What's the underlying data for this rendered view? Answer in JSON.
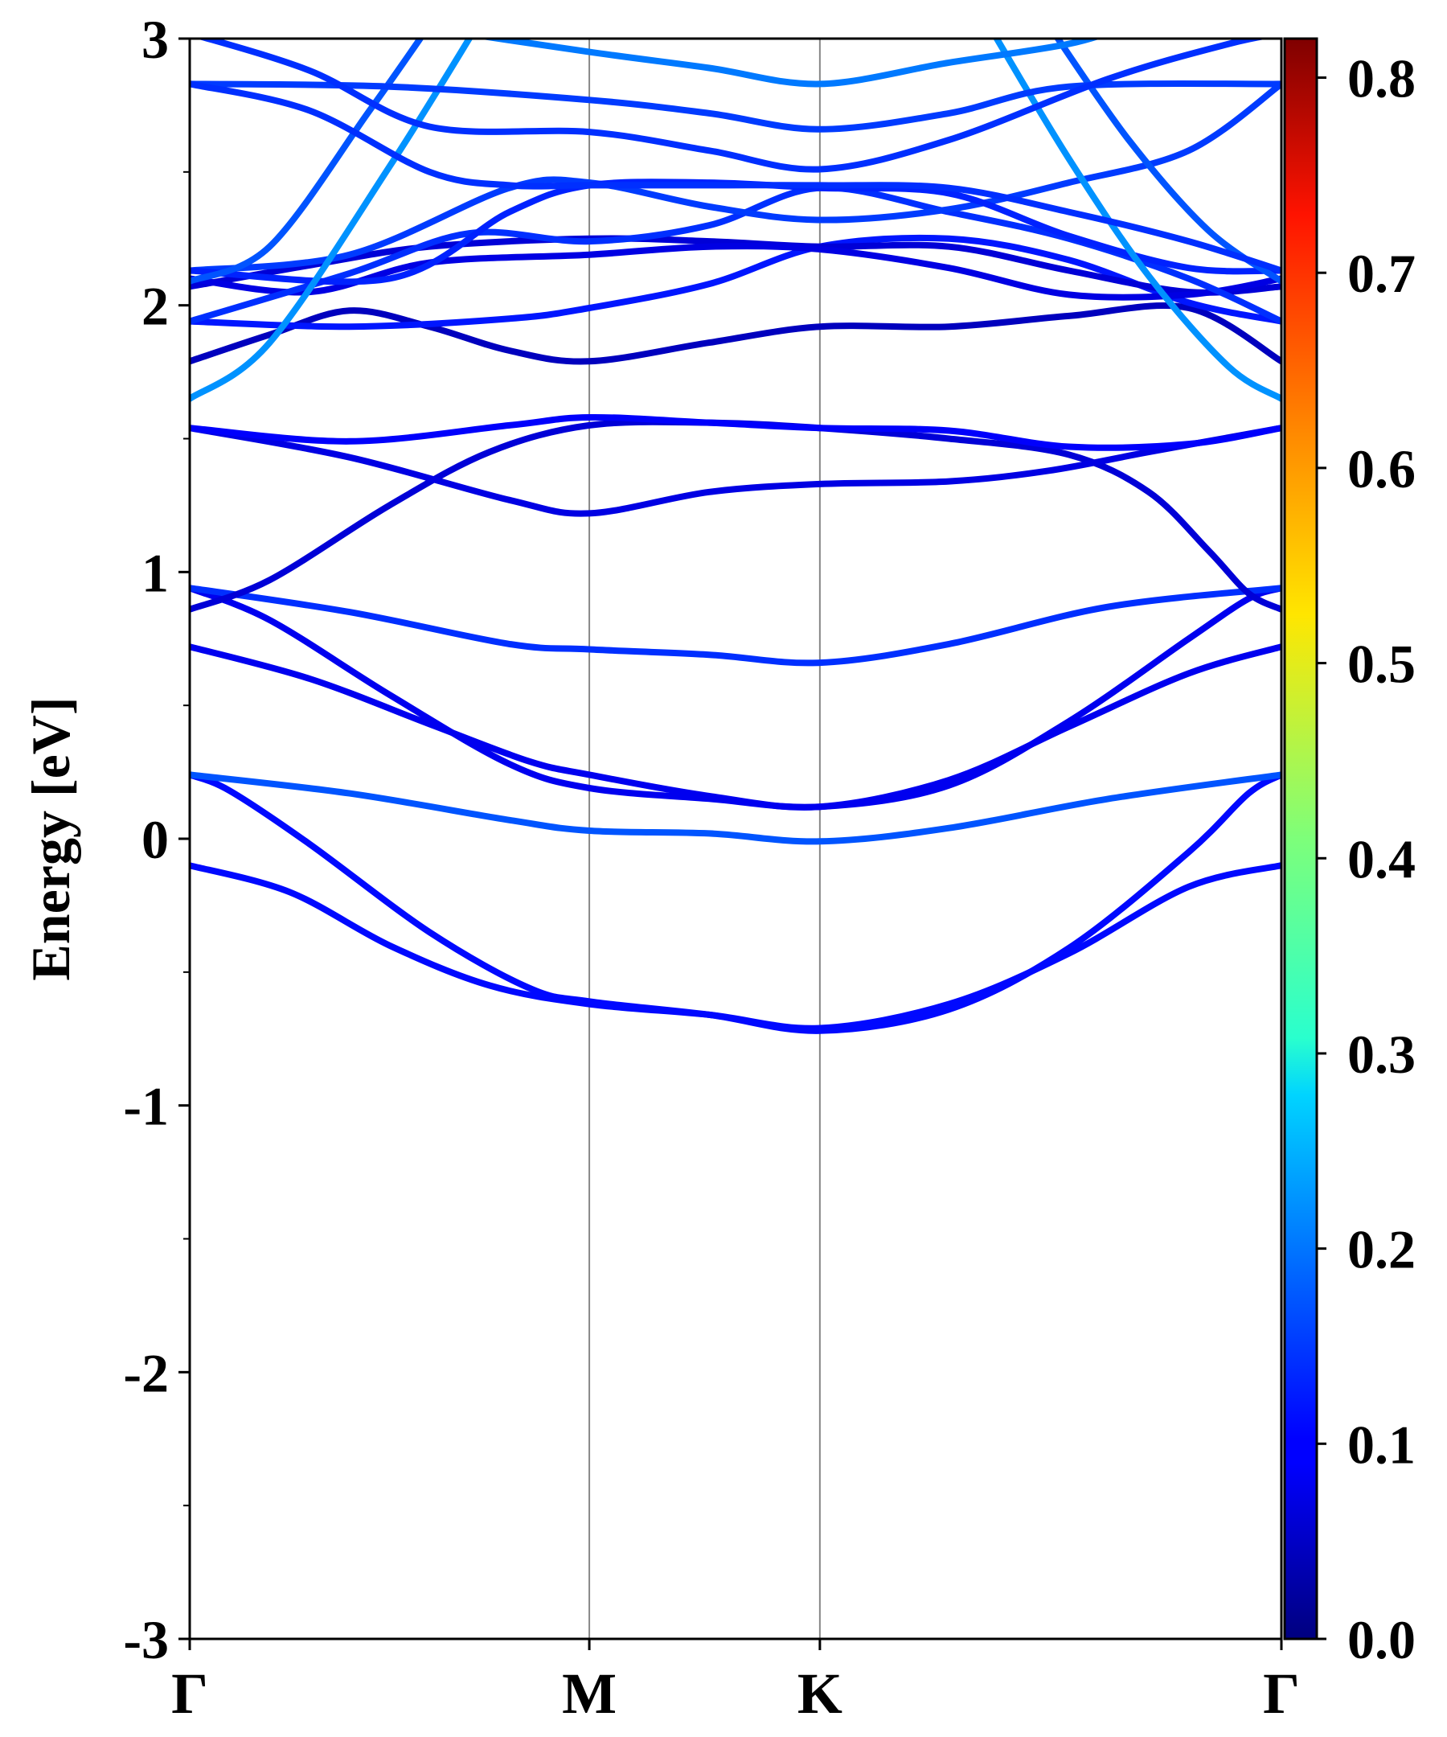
{
  "chart_data": {
    "type": "line",
    "title": "",
    "xlabel": "",
    "ylabel": "Energy [eV]",
    "ylim": [
      -3,
      3
    ],
    "xlim": [
      0,
      2.732
    ],
    "y_ticks": [
      -3,
      -2,
      -1,
      0,
      1,
      2,
      3
    ],
    "y_tick_labels": [
      "-3",
      "-2",
      "-1",
      "0",
      "1",
      "2",
      "3"
    ],
    "y_minor_ticks": [
      -2.5,
      -1.5,
      -0.5,
      0.5,
      1.5,
      2.5
    ],
    "k_points": [
      {
        "label": "Γ",
        "x": 0
      },
      {
        "label": "M",
        "x": 1.0
      },
      {
        "label": "K",
        "x": 1.577
      },
      {
        "label": "Γ",
        "x": 2.732
      }
    ],
    "colorbar": {
      "range": [
        0.0,
        0.82
      ],
      "ticks": [
        0.0,
        0.1,
        0.2,
        0.3,
        0.4,
        0.5,
        0.6,
        0.7,
        0.8
      ],
      "tick_labels": [
        "0.0",
        "0.1",
        "0.2",
        "0.3",
        "0.4",
        "0.5",
        "0.6",
        "0.7",
        "0.8"
      ],
      "colormap": "jet"
    },
    "series": [
      {
        "points": [
          [
            0,
            -0.1
          ],
          [
            0.25,
            -0.2
          ],
          [
            0.5,
            -0.4
          ],
          [
            0.75,
            -0.55
          ],
          [
            1.0,
            -0.62
          ],
          [
            1.3,
            -0.66
          ],
          [
            1.577,
            -0.71
          ],
          [
            1.9,
            -0.62
          ],
          [
            2.2,
            -0.43
          ],
          [
            2.5,
            -0.18
          ],
          [
            2.732,
            -0.1
          ]
        ],
        "weight": 0.11
      },
      {
        "points": [
          [
            0,
            0.24
          ],
          [
            0.1,
            0.18
          ],
          [
            0.3,
            -0.02
          ],
          [
            0.6,
            -0.35
          ],
          [
            0.85,
            -0.56
          ],
          [
            1.0,
            -0.61
          ],
          [
            1.3,
            -0.66
          ],
          [
            1.577,
            -0.72
          ],
          [
            1.9,
            -0.64
          ],
          [
            2.2,
            -0.41
          ],
          [
            2.5,
            -0.05
          ],
          [
            2.65,
            0.17
          ],
          [
            2.732,
            0.24
          ]
        ],
        "weight": 0.11
      },
      {
        "points": [
          [
            0,
            0.24
          ],
          [
            0.4,
            0.17
          ],
          [
            0.8,
            0.07
          ],
          [
            1.0,
            0.03
          ],
          [
            1.3,
            0.02
          ],
          [
            1.577,
            -0.01
          ],
          [
            1.9,
            0.04
          ],
          [
            2.3,
            0.15
          ],
          [
            2.732,
            0.24
          ]
        ],
        "weight": 0.17
      },
      {
        "points": [
          [
            0,
            0.72
          ],
          [
            0.3,
            0.6
          ],
          [
            0.6,
            0.43
          ],
          [
            0.85,
            0.29
          ],
          [
            1.0,
            0.24
          ],
          [
            1.3,
            0.16
          ],
          [
            1.577,
            0.12
          ],
          [
            1.9,
            0.22
          ],
          [
            2.2,
            0.42
          ],
          [
            2.5,
            0.62
          ],
          [
            2.732,
            0.72
          ]
        ],
        "weight": 0.09
      },
      {
        "points": [
          [
            0,
            0.94
          ],
          [
            0.2,
            0.82
          ],
          [
            0.5,
            0.54
          ],
          [
            0.8,
            0.28
          ],
          [
            1.0,
            0.19
          ],
          [
            1.3,
            0.15
          ],
          [
            1.577,
            0.12
          ],
          [
            1.9,
            0.2
          ],
          [
            2.2,
            0.44
          ],
          [
            2.5,
            0.75
          ],
          [
            2.65,
            0.9
          ],
          [
            2.732,
            0.94
          ]
        ],
        "weight": 0.09
      },
      {
        "points": [
          [
            0,
            0.94
          ],
          [
            0.4,
            0.85
          ],
          [
            0.8,
            0.73
          ],
          [
            1.0,
            0.71
          ],
          [
            1.3,
            0.69
          ],
          [
            1.577,
            0.66
          ],
          [
            1.9,
            0.73
          ],
          [
            2.3,
            0.87
          ],
          [
            2.732,
            0.94
          ]
        ],
        "weight": 0.14
      },
      {
        "points": [
          [
            0,
            0.86
          ],
          [
            0.2,
            0.97
          ],
          [
            0.5,
            1.25
          ],
          [
            0.75,
            1.45
          ],
          [
            1.0,
            1.55
          ],
          [
            1.3,
            1.56
          ],
          [
            1.577,
            1.54
          ],
          [
            1.9,
            1.5
          ],
          [
            2.2,
            1.44
          ],
          [
            2.4,
            1.3
          ],
          [
            2.55,
            1.08
          ],
          [
            2.65,
            0.92
          ],
          [
            2.732,
            0.86
          ]
        ],
        "weight": 0.07
      },
      {
        "points": [
          [
            0,
            1.54
          ],
          [
            0.4,
            1.43
          ],
          [
            0.8,
            1.27
          ],
          [
            1.0,
            1.22
          ],
          [
            1.3,
            1.3
          ],
          [
            1.577,
            1.33
          ],
          [
            1.9,
            1.34
          ],
          [
            2.15,
            1.38
          ],
          [
            2.4,
            1.45
          ],
          [
            2.732,
            1.54
          ]
        ],
        "weight": 0.08
      },
      {
        "points": [
          [
            0,
            1.54
          ],
          [
            0.4,
            1.49
          ],
          [
            0.8,
            1.55
          ],
          [
            1.0,
            1.58
          ],
          [
            1.3,
            1.56
          ],
          [
            1.577,
            1.54
          ],
          [
            1.9,
            1.53
          ],
          [
            2.2,
            1.47
          ],
          [
            2.5,
            1.48
          ],
          [
            2.732,
            1.54
          ]
        ],
        "weight": 0.1
      },
      {
        "points": [
          [
            0,
            1.79
          ],
          [
            0.2,
            1.89
          ],
          [
            0.4,
            1.98
          ],
          [
            0.6,
            1.92
          ],
          [
            0.8,
            1.83
          ],
          [
            1.0,
            1.79
          ],
          [
            1.3,
            1.86
          ],
          [
            1.577,
            1.92
          ],
          [
            1.9,
            1.92
          ],
          [
            2.2,
            1.96
          ],
          [
            2.5,
            1.99
          ],
          [
            2.732,
            1.79
          ]
        ],
        "weight": 0.05
      },
      {
        "points": [
          [
            0,
            1.94
          ],
          [
            0.4,
            1.92
          ],
          [
            0.8,
            1.95
          ],
          [
            1.0,
            1.99
          ],
          [
            1.3,
            2.08
          ],
          [
            1.577,
            2.22
          ],
          [
            1.9,
            2.25
          ],
          [
            2.2,
            2.17
          ],
          [
            2.5,
            2.01
          ],
          [
            2.732,
            1.94
          ]
        ],
        "weight": 0.12
      },
      {
        "points": [
          [
            0,
            2.07
          ],
          [
            0.3,
            2.15
          ],
          [
            0.6,
            2.22
          ],
          [
            1.0,
            2.25
          ],
          [
            1.3,
            2.24
          ],
          [
            1.577,
            2.22
          ],
          [
            1.9,
            2.22
          ],
          [
            2.2,
            2.13
          ],
          [
            2.5,
            2.05
          ],
          [
            2.732,
            2.07
          ]
        ],
        "weight": 0.07
      },
      {
        "points": [
          [
            0,
            2.1
          ],
          [
            0.3,
            2.05
          ],
          [
            0.6,
            2.16
          ],
          [
            1.0,
            2.19
          ],
          [
            1.3,
            2.22
          ],
          [
            1.577,
            2.21
          ],
          [
            1.9,
            2.14
          ],
          [
            2.2,
            2.04
          ],
          [
            2.5,
            2.04
          ],
          [
            2.732,
            2.1
          ]
        ],
        "weight": 0.08
      },
      {
        "points": [
          [
            0,
            1.94
          ],
          [
            0.4,
            2.12
          ],
          [
            0.7,
            2.27
          ],
          [
            1.0,
            2.24
          ],
          [
            1.3,
            2.3
          ],
          [
            1.577,
            2.44
          ],
          [
            1.9,
            2.35
          ],
          [
            2.2,
            2.25
          ],
          [
            2.5,
            2.1
          ],
          [
            2.732,
            1.94
          ]
        ],
        "weight": 0.14
      },
      {
        "points": [
          [
            0,
            2.13
          ],
          [
            0.4,
            2.19
          ],
          [
            0.8,
            2.44
          ],
          [
            1.0,
            2.46
          ],
          [
            1.3,
            2.37
          ],
          [
            1.577,
            2.32
          ],
          [
            1.9,
            2.36
          ],
          [
            2.2,
            2.46
          ],
          [
            2.5,
            2.58
          ],
          [
            2.732,
            2.83
          ]
        ],
        "weight": 0.15
      },
      {
        "points": [
          [
            0,
            2.13
          ],
          [
            0.5,
            2.1
          ],
          [
            0.8,
            2.35
          ],
          [
            1.0,
            2.45
          ],
          [
            1.3,
            2.46
          ],
          [
            1.577,
            2.44
          ],
          [
            1.9,
            2.42
          ],
          [
            2.2,
            2.26
          ],
          [
            2.5,
            2.14
          ],
          [
            2.732,
            2.13
          ]
        ],
        "weight": 0.13
      },
      {
        "points": [
          [
            0,
            2.09
          ],
          [
            0.2,
            2.22
          ],
          [
            0.45,
            2.73
          ],
          [
            0.6,
            3.05
          ]
        ],
        "weight": 0.17
      },
      {
        "points": [
          [
            0,
            1.65
          ],
          [
            0.2,
            1.86
          ],
          [
            0.5,
            2.52
          ],
          [
            0.72,
            3.05
          ]
        ],
        "weight": 0.22
      },
      {
        "points": [
          [
            2.0,
            3.05
          ],
          [
            2.2,
            2.55
          ],
          [
            2.4,
            2.11
          ],
          [
            2.6,
            1.77
          ],
          [
            2.732,
            1.65
          ]
        ],
        "weight": 0.22
      },
      {
        "points": [
          [
            2.15,
            3.05
          ],
          [
            2.35,
            2.62
          ],
          [
            2.55,
            2.28
          ],
          [
            2.732,
            2.09
          ]
        ],
        "weight": 0.17
      },
      {
        "points": [
          [
            0,
            2.83
          ],
          [
            0.5,
            2.82
          ],
          [
            1.0,
            2.77
          ],
          [
            1.3,
            2.72
          ],
          [
            1.577,
            2.66
          ],
          [
            1.9,
            2.72
          ],
          [
            2.2,
            2.82
          ],
          [
            2.732,
            2.83
          ]
        ],
        "weight": 0.15
      },
      {
        "points": [
          [
            0,
            2.83
          ],
          [
            0.3,
            2.73
          ],
          [
            0.6,
            2.5
          ],
          [
            0.8,
            2.45
          ],
          [
            1.0,
            2.45
          ],
          [
            1.3,
            2.45
          ],
          [
            1.577,
            2.45
          ],
          [
            1.9,
            2.44
          ],
          [
            2.2,
            2.35
          ],
          [
            2.5,
            2.24
          ],
          [
            2.732,
            2.13
          ]
        ],
        "weight": 0.14
      },
      {
        "points": [
          [
            0,
            3.02
          ],
          [
            0.3,
            2.88
          ],
          [
            0.6,
            2.67
          ],
          [
            1.0,
            2.65
          ],
          [
            1.3,
            2.58
          ],
          [
            1.577,
            2.51
          ],
          [
            1.9,
            2.62
          ],
          [
            2.3,
            2.85
          ],
          [
            2.6,
            2.98
          ],
          [
            2.732,
            3.02
          ]
        ],
        "weight": 0.14
      },
      {
        "points": [
          [
            0.55,
            3.05
          ],
          [
            1.0,
            2.95
          ],
          [
            1.3,
            2.89
          ],
          [
            1.577,
            2.83
          ],
          [
            1.9,
            2.91
          ],
          [
            2.2,
            2.98
          ],
          [
            2.35,
            3.05
          ]
        ],
        "weight": 0.2
      }
    ]
  }
}
